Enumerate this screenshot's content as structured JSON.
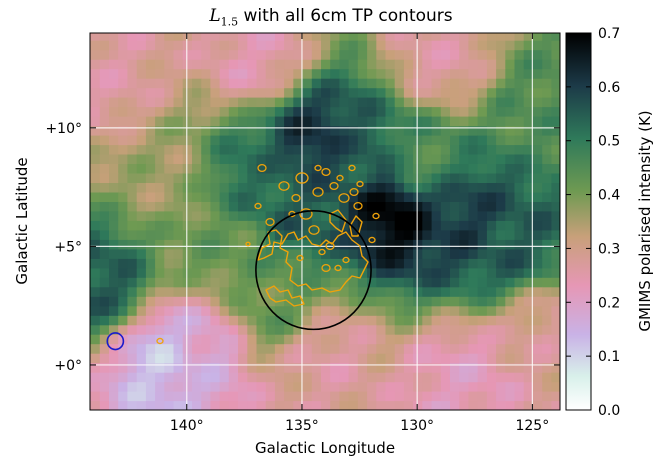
{
  "chart_data": {
    "type": "heatmap",
    "title": {
      "symbol": "L",
      "subscript": "1.5",
      "text": " with all 6cm TP contours"
    },
    "xlabel": "Galactic Longitude",
    "ylabel": "Galactic Latitude",
    "xlim": [
      144.2,
      123.8
    ],
    "ylim": [
      -1.9,
      14.0
    ],
    "x_ticks": [
      140,
      135,
      130,
      125
    ],
    "x_tick_labels": [
      "140°",
      "135°",
      "130°",
      "125°"
    ],
    "y_ticks": [
      0,
      5,
      10
    ],
    "y_tick_labels": [
      "+0°",
      "+5°",
      "+10°"
    ],
    "grid": true,
    "colorbar": {
      "label": "GMIMS polarised intensity (K)",
      "range": [
        0.0,
        0.7
      ],
      "ticks": [
        0.0,
        0.1,
        0.2,
        0.3,
        0.4,
        0.5,
        0.6,
        0.7
      ],
      "tick_labels": [
        "0.0",
        "0.1",
        "0.2",
        "0.3",
        "0.4",
        "0.5",
        "0.6",
        "0.7"
      ],
      "colormap": "cubehelix-like (white → lilac → pink → tan → green → dark teal → black)"
    },
    "overlays": {
      "black_circle": {
        "center": [
          134.5,
          4.0
        ],
        "radius_deg": 2.5,
        "color": "#000000"
      },
      "beam_circle": {
        "center": [
          143.1,
          1.0
        ],
        "radius_deg": 0.35,
        "color": "#1a1acc"
      },
      "contour_color": "#f0a30a"
    },
    "intensity_features": [
      {
        "l": 134.5,
        "b": 9.5,
        "value": 0.62
      },
      {
        "l": 131.0,
        "b": 6.5,
        "value": 0.7
      },
      {
        "l": 128.0,
        "b": 6.0,
        "value": 0.6
      },
      {
        "l": 126.0,
        "b": 5.0,
        "value": 0.55
      },
      {
        "l": 132.5,
        "b": 9.0,
        "value": 0.55
      },
      {
        "l": 137.0,
        "b": 8.0,
        "value": 0.52
      },
      {
        "l": 135.0,
        "b": 6.5,
        "value": 0.55
      },
      {
        "l": 124.5,
        "b": 11.0,
        "value": 0.45
      },
      {
        "l": 141.0,
        "b": 8.0,
        "value": 0.36
      },
      {
        "l": 136.0,
        "b": 2.5,
        "value": 0.42
      },
      {
        "l": 141.0,
        "b": 0.2,
        "value": 0.12
      },
      {
        "l": 139.5,
        "b": 0.5,
        "value": 0.18
      },
      {
        "l": 128.0,
        "b": -0.5,
        "value": 0.22
      },
      {
        "l": 134.0,
        "b": 0.5,
        "value": 0.26
      },
      {
        "l": 137.0,
        "b": 13.0,
        "value": 0.24
      },
      {
        "l": 129.0,
        "b": 13.0,
        "value": 0.26
      },
      {
        "l": 143.5,
        "b": 12.0,
        "value": 0.26
      },
      {
        "l": 124.5,
        "b": 1.5,
        "value": 0.28
      },
      {
        "l": 143.8,
        "b": 3.5,
        "value": 0.55
      },
      {
        "l": 130.0,
        "b": 8.5,
        "value": 0.45
      },
      {
        "l": 138.5,
        "b": 5.0,
        "value": 0.42
      }
    ]
  }
}
